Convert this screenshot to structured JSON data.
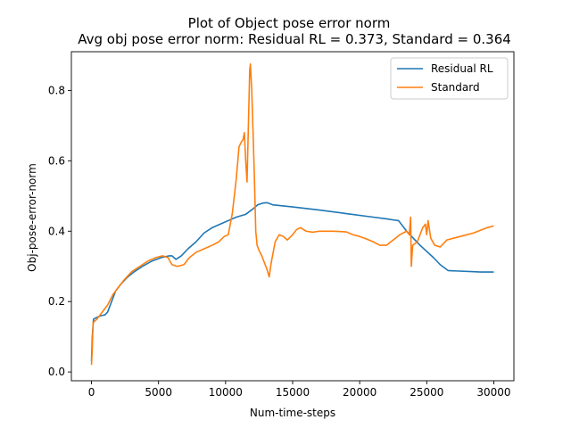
{
  "chart_data": {
    "type": "line",
    "title": "Plot of Object pose error norm",
    "subtitle": "Avg obj pose error norm: Residual RL = 0.373, Standard = 0.364",
    "xlabel": "Num-time-steps",
    "ylabel": "Obj-pose-error-norm",
    "xlim": [
      -1500,
      31500
    ],
    "ylim": [
      -0.025,
      0.91
    ],
    "xticks": [
      0,
      5000,
      10000,
      15000,
      20000,
      25000,
      30000
    ],
    "xtick_labels": [
      "0",
      "5000",
      "10000",
      "15000",
      "20000",
      "25000",
      "30000"
    ],
    "yticks": [
      0.0,
      0.2,
      0.4,
      0.6,
      0.8
    ],
    "ytick_labels": [
      "0.0",
      "0.2",
      "0.4",
      "0.6",
      "0.8"
    ],
    "grid": false,
    "legend_position": "upper right",
    "series": [
      {
        "name": "Residual RL",
        "color": "#1f77b4",
        "points": [
          [
            0,
            0.03
          ],
          [
            60,
            0.1
          ],
          [
            150,
            0.15
          ],
          [
            400,
            0.155
          ],
          [
            700,
            0.16
          ],
          [
            1000,
            0.162
          ],
          [
            1200,
            0.17
          ],
          [
            1500,
            0.2
          ],
          [
            1800,
            0.23
          ],
          [
            2200,
            0.25
          ],
          [
            2700,
            0.27
          ],
          [
            3200,
            0.285
          ],
          [
            3800,
            0.3
          ],
          [
            4500,
            0.315
          ],
          [
            5200,
            0.325
          ],
          [
            5800,
            0.33
          ],
          [
            6000,
            0.33
          ],
          [
            6300,
            0.32
          ],
          [
            6700,
            0.33
          ],
          [
            7200,
            0.35
          ],
          [
            7800,
            0.37
          ],
          [
            8400,
            0.395
          ],
          [
            9000,
            0.41
          ],
          [
            9600,
            0.42
          ],
          [
            10200,
            0.43
          ],
          [
            10800,
            0.44
          ],
          [
            11500,
            0.448
          ],
          [
            12000,
            0.462
          ],
          [
            12400,
            0.475
          ],
          [
            12800,
            0.48
          ],
          [
            13100,
            0.481
          ],
          [
            13500,
            0.475
          ],
          [
            15000,
            0.469
          ],
          [
            17000,
            0.46
          ],
          [
            19000,
            0.45
          ],
          [
            21000,
            0.44
          ],
          [
            22000,
            0.435
          ],
          [
            22500,
            0.432
          ],
          [
            22900,
            0.43
          ],
          [
            23500,
            0.4
          ],
          [
            24500,
            0.36
          ],
          [
            25500,
            0.325
          ],
          [
            26000,
            0.305
          ],
          [
            26600,
            0.288
          ],
          [
            27200,
            0.287
          ],
          [
            28500,
            0.285
          ],
          [
            29000,
            0.284
          ],
          [
            30000,
            0.284
          ]
        ]
      },
      {
        "name": "Standard",
        "color": "#ff7f0e",
        "points": [
          [
            0,
            0.02
          ],
          [
            50,
            0.06
          ],
          [
            120,
            0.14
          ],
          [
            400,
            0.15
          ],
          [
            800,
            0.17
          ],
          [
            1200,
            0.19
          ],
          [
            1600,
            0.22
          ],
          [
            2000,
            0.24
          ],
          [
            2400,
            0.26
          ],
          [
            3000,
            0.285
          ],
          [
            3600,
            0.3
          ],
          [
            4200,
            0.315
          ],
          [
            4800,
            0.325
          ],
          [
            5300,
            0.33
          ],
          [
            5700,
            0.325
          ],
          [
            6000,
            0.305
          ],
          [
            6400,
            0.3
          ],
          [
            6900,
            0.305
          ],
          [
            7300,
            0.325
          ],
          [
            7800,
            0.34
          ],
          [
            8400,
            0.35
          ],
          [
            9000,
            0.36
          ],
          [
            9500,
            0.37
          ],
          [
            9900,
            0.385
          ],
          [
            10200,
            0.39
          ],
          [
            10500,
            0.45
          ],
          [
            10800,
            0.55
          ],
          [
            11000,
            0.64
          ],
          [
            11200,
            0.655
          ],
          [
            11300,
            0.66
          ],
          [
            11400,
            0.68
          ],
          [
            11500,
            0.6
          ],
          [
            11600,
            0.54
          ],
          [
            11700,
            0.7
          ],
          [
            11800,
            0.86
          ],
          [
            11850,
            0.875
          ],
          [
            11950,
            0.8
          ],
          [
            12050,
            0.68
          ],
          [
            12150,
            0.55
          ],
          [
            12250,
            0.4
          ],
          [
            12350,
            0.36
          ],
          [
            12500,
            0.345
          ],
          [
            12700,
            0.33
          ],
          [
            12900,
            0.31
          ],
          [
            13000,
            0.3
          ],
          [
            13100,
            0.29
          ],
          [
            13250,
            0.27
          ],
          [
            13400,
            0.31
          ],
          [
            13700,
            0.37
          ],
          [
            14000,
            0.39
          ],
          [
            14300,
            0.385
          ],
          [
            14600,
            0.375
          ],
          [
            15000,
            0.39
          ],
          [
            15300,
            0.405
          ],
          [
            15600,
            0.41
          ],
          [
            16000,
            0.4
          ],
          [
            16500,
            0.397
          ],
          [
            17000,
            0.4
          ],
          [
            18000,
            0.4
          ],
          [
            19000,
            0.398
          ],
          [
            19500,
            0.39
          ],
          [
            20000,
            0.385
          ],
          [
            20500,
            0.378
          ],
          [
            21000,
            0.37
          ],
          [
            21500,
            0.36
          ],
          [
            22000,
            0.36
          ],
          [
            22500,
            0.375
          ],
          [
            23000,
            0.39
          ],
          [
            23500,
            0.4
          ],
          [
            23700,
            0.39
          ],
          [
            23800,
            0.44
          ],
          [
            23850,
            0.3
          ],
          [
            23950,
            0.36
          ],
          [
            24300,
            0.37
          ],
          [
            24700,
            0.41
          ],
          [
            24900,
            0.42
          ],
          [
            25000,
            0.39
          ],
          [
            25100,
            0.43
          ],
          [
            25300,
            0.38
          ],
          [
            25600,
            0.36
          ],
          [
            26000,
            0.355
          ],
          [
            26500,
            0.375
          ],
          [
            27500,
            0.385
          ],
          [
            28500,
            0.395
          ],
          [
            29500,
            0.41
          ],
          [
            30000,
            0.415
          ]
        ]
      }
    ]
  }
}
